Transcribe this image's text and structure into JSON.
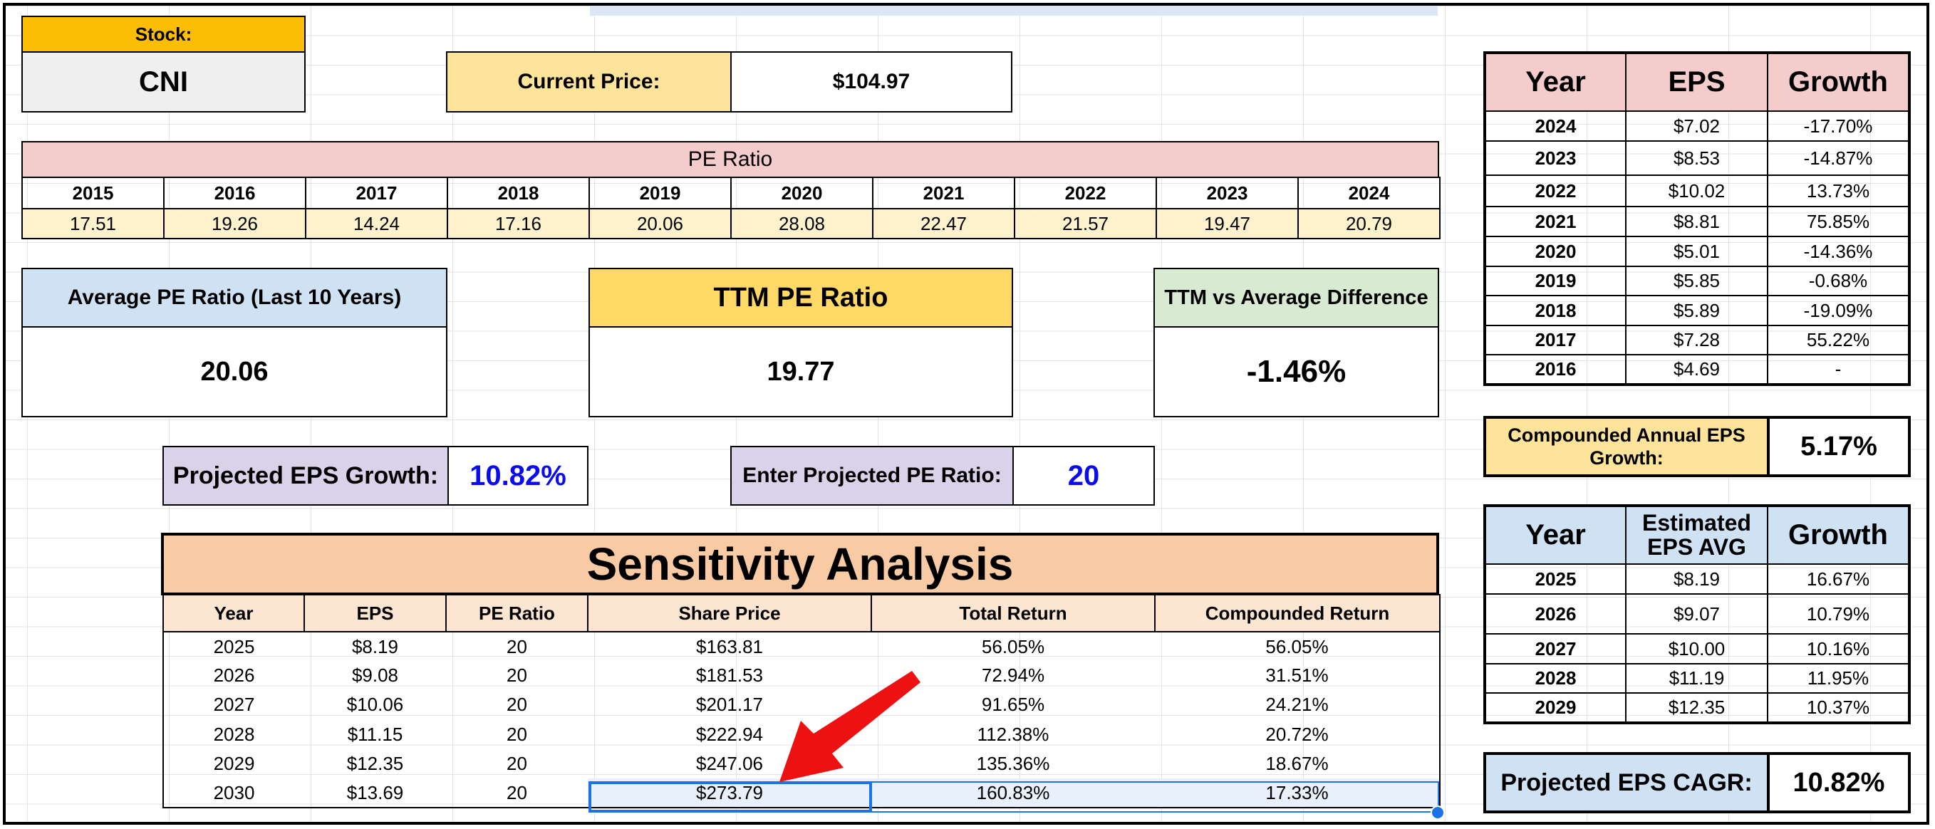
{
  "stock": {
    "label": "Stock:",
    "ticker": "CNI"
  },
  "current_price": {
    "label": "Current Price:",
    "value": "$104.97"
  },
  "pe_ratio": {
    "title": "PE Ratio",
    "years": [
      "2015",
      "2016",
      "2017",
      "2018",
      "2019",
      "2020",
      "2021",
      "2022",
      "2023",
      "2024"
    ],
    "values": [
      "17.51",
      "19.26",
      "14.24",
      "17.16",
      "20.06",
      "28.08",
      "22.47",
      "21.57",
      "19.47",
      "20.79"
    ]
  },
  "average_pe": {
    "label": "Average PE Ratio (Last 10 Years)",
    "value": "20.06"
  },
  "ttm_pe": {
    "label": "TTM PE Ratio",
    "value": "19.77"
  },
  "ttm_vs_avg": {
    "label": "TTM vs Average Difference",
    "value": "-1.46%"
  },
  "projected_growth": {
    "label": "Projected EPS Growth:",
    "value": "10.82%"
  },
  "projected_pe": {
    "label": "Enter Projected PE Ratio:",
    "value": "20"
  },
  "sensitivity": {
    "title": "Sensitivity Analysis",
    "headers": [
      "Year",
      "EPS",
      "PE Ratio",
      "Share Price",
      "Total Return",
      "Compounded Return"
    ],
    "rows": [
      [
        "2025",
        "$8.19",
        "20",
        "$163.81",
        "56.05%",
        "56.05%"
      ],
      [
        "2026",
        "$9.08",
        "20",
        "$181.53",
        "72.94%",
        "31.51%"
      ],
      [
        "2027",
        "$10.06",
        "20",
        "$201.17",
        "91.65%",
        "24.21%"
      ],
      [
        "2028",
        "$11.15",
        "20",
        "$222.94",
        "112.38%",
        "20.72%"
      ],
      [
        "2029",
        "$12.35",
        "20",
        "$247.06",
        "135.36%",
        "18.67%"
      ],
      [
        "2030",
        "$13.69",
        "20",
        "$273.79",
        "160.83%",
        "17.33%"
      ]
    ]
  },
  "eps_history": {
    "headers": [
      "Year",
      "EPS",
      "Growth"
    ],
    "rows": [
      [
        "2024",
        "$7.02",
        "-17.70%"
      ],
      [
        "2023",
        "$8.53",
        "-14.87%"
      ],
      [
        "2022",
        "$10.02",
        "13.73%"
      ],
      [
        "2021",
        "$8.81",
        "75.85%"
      ],
      [
        "2020",
        "$5.01",
        "-14.36%"
      ],
      [
        "2019",
        "$5.85",
        "-0.68%"
      ],
      [
        "2018",
        "$5.89",
        "-19.09%"
      ],
      [
        "2017",
        "$7.28",
        "55.22%"
      ],
      [
        "2016",
        "$4.69",
        "-"
      ]
    ]
  },
  "compounded_eps": {
    "label": "Compounded Annual EPS Growth:",
    "value": "5.17%"
  },
  "estimated_eps": {
    "headers": [
      "Year",
      "Estimated EPS AVG",
      "Growth"
    ],
    "rows": [
      [
        "2025",
        "$8.19",
        "16.67%"
      ],
      [
        "2026",
        "$9.07",
        "10.79%"
      ],
      [
        "2027",
        "$10.00",
        "10.16%"
      ],
      [
        "2028",
        "$11.19",
        "11.95%"
      ],
      [
        "2029",
        "$12.35",
        "10.37%"
      ]
    ]
  },
  "projected_cagr": {
    "label": "Projected EPS CAGR:",
    "value": "10.82%"
  },
  "annotation": {
    "arrow_color": "#ee1111",
    "selection_color": "#1a73e8"
  }
}
